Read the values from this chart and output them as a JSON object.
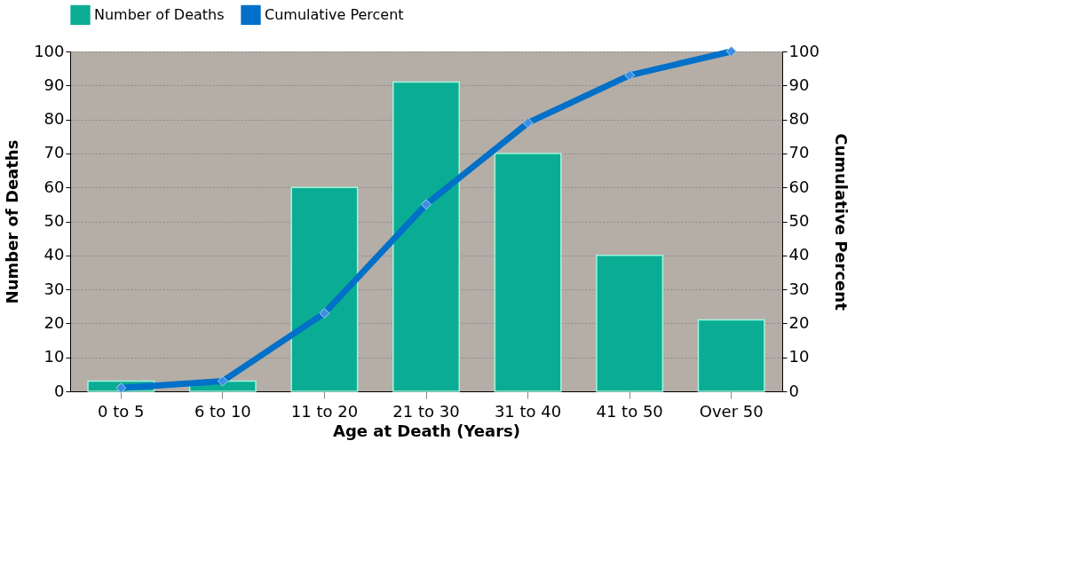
{
  "chart_data": {
    "type": "bar",
    "xlabel": "Age at Death (Years)",
    "ylabel": "Number of Deaths",
    "y2label": "Cumulative Percent",
    "categories": [
      "0 to 5",
      "6 to 10",
      "11 to 20",
      "21 to 30",
      "31 to 40",
      "41 to 50",
      "Over 50"
    ],
    "series": [
      {
        "name": "Number of Deaths",
        "color": "#0aad93",
        "values": [
          3,
          3,
          60,
          91,
          70,
          40,
          21
        ]
      },
      {
        "name": "Cumulative Percent",
        "type": "line",
        "axis": "y2",
        "color": "#0070c8",
        "marker": "diamond",
        "values": [
          1,
          3,
          23,
          55,
          79,
          93,
          100
        ]
      }
    ],
    "ylim": [
      0,
      100
    ],
    "yticks": [
      0,
      10,
      20,
      30,
      40,
      50,
      60,
      70,
      80,
      90,
      100
    ],
    "y2lim": [
      0,
      100
    ],
    "y2ticks": [
      0,
      10,
      20,
      30,
      40,
      50,
      60,
      70,
      80,
      90,
      100
    ],
    "grid": "y",
    "legend": "top"
  }
}
